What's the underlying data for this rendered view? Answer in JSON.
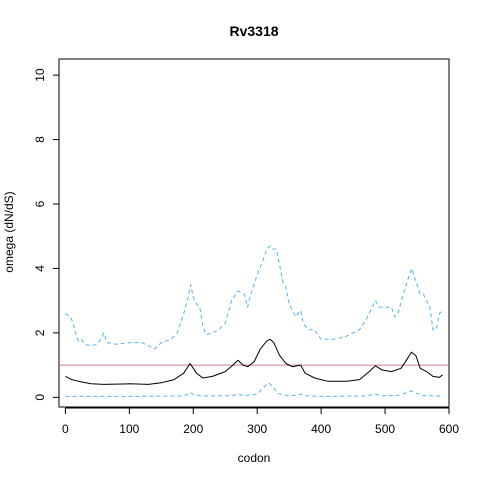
{
  "chart_data": {
    "type": "line",
    "title": "Rv3318",
    "xlabel": "codon",
    "ylabel": "omega (dN/dS)",
    "xlim": [
      -10,
      600
    ],
    "ylim": [
      -0.3,
      10.5
    ],
    "xticks": [
      0,
      100,
      200,
      300,
      400,
      500,
      600
    ],
    "yticks": [
      0,
      2,
      4,
      6,
      8,
      10
    ],
    "reference_line": {
      "y": 1,
      "color": "#cc79a7"
    },
    "series": [
      {
        "style": "dashed",
        "color": "#56b4e9",
        "points": [
          [
            0,
            2.6
          ],
          [
            8,
            2.5
          ],
          [
            12,
            2.3
          ],
          [
            16,
            2.0
          ],
          [
            20,
            1.75
          ],
          [
            25,
            1.8
          ],
          [
            30,
            1.65
          ],
          [
            40,
            1.6
          ],
          [
            50,
            1.65
          ],
          [
            55,
            1.8
          ],
          [
            60,
            2.0
          ],
          [
            65,
            1.7
          ],
          [
            80,
            1.65
          ],
          [
            100,
            1.7
          ],
          [
            120,
            1.7
          ],
          [
            130,
            1.6
          ],
          [
            140,
            1.5
          ],
          [
            150,
            1.7
          ],
          [
            165,
            1.8
          ],
          [
            175,
            2.0
          ],
          [
            185,
            2.6
          ],
          [
            192,
            3.1
          ],
          [
            196,
            3.5
          ],
          [
            200,
            3.1
          ],
          [
            205,
            2.9
          ],
          [
            210,
            2.8
          ],
          [
            215,
            2.2
          ],
          [
            220,
            1.95
          ],
          [
            230,
            2.0
          ],
          [
            240,
            2.1
          ],
          [
            250,
            2.3
          ],
          [
            260,
            3.0
          ],
          [
            270,
            3.3
          ],
          [
            280,
            3.2
          ],
          [
            285,
            2.8
          ],
          [
            290,
            3.2
          ],
          [
            300,
            3.8
          ],
          [
            310,
            4.3
          ],
          [
            315,
            4.6
          ],
          [
            320,
            4.7
          ],
          [
            325,
            4.6
          ],
          [
            330,
            4.6
          ],
          [
            335,
            4.1
          ],
          [
            340,
            3.6
          ],
          [
            345,
            3.4
          ],
          [
            350,
            2.9
          ],
          [
            355,
            2.7
          ],
          [
            360,
            2.5
          ],
          [
            368,
            2.7
          ],
          [
            372,
            2.3
          ],
          [
            380,
            2.1
          ],
          [
            390,
            2.1
          ],
          [
            400,
            1.8
          ],
          [
            420,
            1.8
          ],
          [
            440,
            1.9
          ],
          [
            460,
            2.1
          ],
          [
            470,
            2.4
          ],
          [
            480,
            2.8
          ],
          [
            485,
            3.0
          ],
          [
            490,
            2.8
          ],
          [
            500,
            2.8
          ],
          [
            510,
            2.8
          ],
          [
            515,
            2.5
          ],
          [
            520,
            2.6
          ],
          [
            530,
            3.3
          ],
          [
            538,
            3.8
          ],
          [
            542,
            4.0
          ],
          [
            548,
            3.6
          ],
          [
            555,
            3.2
          ],
          [
            560,
            3.2
          ],
          [
            570,
            2.8
          ],
          [
            575,
            2.1
          ],
          [
            580,
            2.1
          ],
          [
            585,
            2.6
          ],
          [
            590,
            2.7
          ]
        ]
      },
      {
        "style": "solid",
        "color": "#000000",
        "points": [
          [
            0,
            0.65
          ],
          [
            10,
            0.55
          ],
          [
            20,
            0.5
          ],
          [
            40,
            0.42
          ],
          [
            60,
            0.4
          ],
          [
            100,
            0.42
          ],
          [
            130,
            0.4
          ],
          [
            150,
            0.45
          ],
          [
            170,
            0.55
          ],
          [
            185,
            0.75
          ],
          [
            195,
            1.05
          ],
          [
            205,
            0.75
          ],
          [
            215,
            0.6
          ],
          [
            230,
            0.65
          ],
          [
            250,
            0.8
          ],
          [
            262,
            1.0
          ],
          [
            270,
            1.15
          ],
          [
            278,
            1.0
          ],
          [
            285,
            0.95
          ],
          [
            295,
            1.1
          ],
          [
            305,
            1.5
          ],
          [
            315,
            1.75
          ],
          [
            320,
            1.8
          ],
          [
            326,
            1.7
          ],
          [
            335,
            1.3
          ],
          [
            345,
            1.05
          ],
          [
            355,
            0.95
          ],
          [
            368,
            1.0
          ],
          [
            375,
            0.75
          ],
          [
            390,
            0.6
          ],
          [
            410,
            0.5
          ],
          [
            440,
            0.5
          ],
          [
            460,
            0.55
          ],
          [
            475,
            0.8
          ],
          [
            485,
            0.98
          ],
          [
            495,
            0.85
          ],
          [
            510,
            0.8
          ],
          [
            525,
            0.9
          ],
          [
            535,
            1.2
          ],
          [
            541,
            1.4
          ],
          [
            548,
            1.3
          ],
          [
            555,
            0.9
          ],
          [
            565,
            0.8
          ],
          [
            575,
            0.65
          ],
          [
            585,
            0.62
          ],
          [
            590,
            0.7
          ]
        ]
      },
      {
        "style": "dashed",
        "color": "#56b4e9",
        "points": [
          [
            0,
            0.03
          ],
          [
            100,
            0.03
          ],
          [
            180,
            0.04
          ],
          [
            190,
            0.08
          ],
          [
            196,
            0.14
          ],
          [
            202,
            0.07
          ],
          [
            215,
            0.04
          ],
          [
            260,
            0.05
          ],
          [
            270,
            0.1
          ],
          [
            280,
            0.05
          ],
          [
            300,
            0.1
          ],
          [
            312,
            0.35
          ],
          [
            318,
            0.45
          ],
          [
            324,
            0.35
          ],
          [
            332,
            0.12
          ],
          [
            345,
            0.06
          ],
          [
            360,
            0.06
          ],
          [
            368,
            0.1
          ],
          [
            376,
            0.05
          ],
          [
            400,
            0.03
          ],
          [
            470,
            0.04
          ],
          [
            485,
            0.1
          ],
          [
            495,
            0.05
          ],
          [
            520,
            0.06
          ],
          [
            535,
            0.15
          ],
          [
            541,
            0.2
          ],
          [
            548,
            0.13
          ],
          [
            560,
            0.05
          ],
          [
            590,
            0.04
          ]
        ]
      }
    ]
  }
}
